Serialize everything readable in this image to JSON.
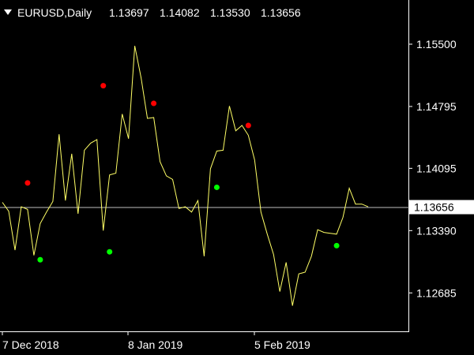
{
  "header": {
    "menu_icon": "triangle-down-icon",
    "symbol_timeframe": "EURUSD,Daily",
    "ohlc": [
      "1.13697",
      "1.14082",
      "1.13530",
      "1.13656"
    ]
  },
  "colors": {
    "background": "#000000",
    "price_line": "#ffff66",
    "current_price_line": "#c0c0c0",
    "axis": "#ffffff",
    "sell_dot": "#ff0000",
    "buy_dot": "#00ff00"
  },
  "chart_data": {
    "type": "line",
    "title": "",
    "xlabel": "",
    "ylabel": "",
    "ylim": [
      1.1225,
      1.16
    ],
    "y_ticks": [
      "1.15500",
      "1.14795",
      "1.14095",
      "1.13390",
      "1.12685"
    ],
    "x_tick_labels": [
      "7 Dec 2018",
      "8 Jan 2019",
      "5 Feb 2019"
    ],
    "current_price": "1.13656",
    "grid": false,
    "series": [
      {
        "values": [
          1.1371,
          1.1361,
          1.1317,
          1.1366,
          1.1363,
          1.1311,
          1.1347,
          1.136,
          1.1372,
          1.1448,
          1.1373,
          1.1426,
          1.1358,
          1.143,
          1.1438,
          1.1442,
          1.1339,
          1.1402,
          1.1404,
          1.1471,
          1.1443,
          1.1548,
          1.1512,
          1.1466,
          1.1467,
          1.1417,
          1.1401,
          1.1397,
          1.1364,
          1.1366,
          1.136,
          1.1373,
          1.131,
          1.1409,
          1.1429,
          1.143,
          1.148,
          1.1452,
          1.1458,
          1.1447,
          1.1419,
          1.136,
          1.1335,
          1.1312,
          1.127,
          1.1303,
          1.1254,
          1.129,
          1.1292,
          1.131,
          1.134,
          1.1337,
          1.1336,
          1.1335,
          1.1354,
          1.1387,
          1.1369,
          1.1369,
          1.1366
        ]
      }
    ],
    "signal_dots": [
      {
        "index": 4,
        "value": 1.1393,
        "signal": "sell"
      },
      {
        "index": 6,
        "value": 1.1306,
        "signal": "buy"
      },
      {
        "index": 16,
        "value": 1.1503,
        "signal": "sell"
      },
      {
        "index": 17,
        "value": 1.1315,
        "signal": "buy"
      },
      {
        "index": 24,
        "value": 1.1483,
        "signal": "sell"
      },
      {
        "index": 34,
        "value": 1.1388,
        "signal": "buy"
      },
      {
        "index": 39,
        "value": 1.1458,
        "signal": "sell"
      },
      {
        "index": 53,
        "value": 1.1322,
        "signal": "buy"
      }
    ]
  }
}
